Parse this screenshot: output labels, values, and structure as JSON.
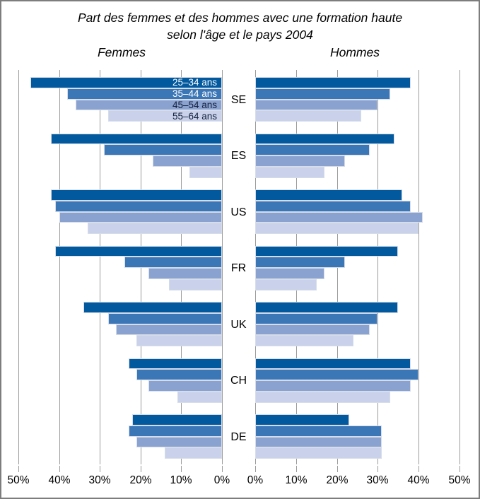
{
  "title": {
    "line1": "Part des femmes et des hommes avec une formation haute",
    "line2": "selon l'âge et le pays 2004"
  },
  "panels": {
    "left_label": "Femmes",
    "right_label": "Hommes"
  },
  "axis": {
    "left_tick_labels": [
      "50%",
      "40%",
      "30%",
      "20%",
      "10%",
      "0%"
    ],
    "right_tick_labels": [
      "0%",
      "10%",
      "20%",
      "30%",
      "40%",
      "50%"
    ],
    "unit": "%",
    "max_percent": 50,
    "grid": true
  },
  "colors": {
    "age_shades": [
      "#02599e",
      "#3b76b7",
      "#8aa2d0",
      "#c9d2ea"
    ],
    "legend_text": [
      "#ffffff",
      "#ffffff",
      "#14203c",
      "#14203c"
    ],
    "gridline": "#9b9b9b",
    "frame_border": "#7d7d7d"
  },
  "chart_data": {
    "type": "bar",
    "subtype": "bidirectional-pyramid",
    "title": "Part des femmes et des hommes avec une formation haute selon l'âge et le pays 2004",
    "series_left_name": "Femmes",
    "series_right_name": "Hommes",
    "age_groups": [
      "25–34 ans",
      "35–44 ans",
      "45–54 ans",
      "55–64 ans"
    ],
    "xlim_percent": [
      0,
      50
    ],
    "legend_position": "overlaid-on-first-left-group",
    "countries": [
      {
        "code": "SE",
        "femmes": [
          47,
          38,
          36,
          28
        ],
        "hommes": [
          38,
          33,
          30,
          26
        ]
      },
      {
        "code": "ES",
        "femmes": [
          42,
          29,
          17,
          8
        ],
        "hommes": [
          34,
          28,
          22,
          17
        ]
      },
      {
        "code": "US",
        "femmes": [
          42,
          41,
          40,
          33
        ],
        "hommes": [
          36,
          38,
          41,
          40
        ]
      },
      {
        "code": "FR",
        "femmes": [
          41,
          24,
          18,
          13
        ],
        "hommes": [
          35,
          22,
          17,
          15
        ]
      },
      {
        "code": "UK",
        "femmes": [
          34,
          28,
          26,
          21
        ],
        "hommes": [
          35,
          30,
          28,
          24
        ]
      },
      {
        "code": "CH",
        "femmes": [
          23,
          21,
          18,
          11
        ],
        "hommes": [
          38,
          40,
          38,
          33
        ]
      },
      {
        "code": "DE",
        "femmes": [
          22,
          23,
          21,
          14
        ],
        "hommes": [
          23,
          31,
          31,
          31
        ]
      }
    ]
  }
}
